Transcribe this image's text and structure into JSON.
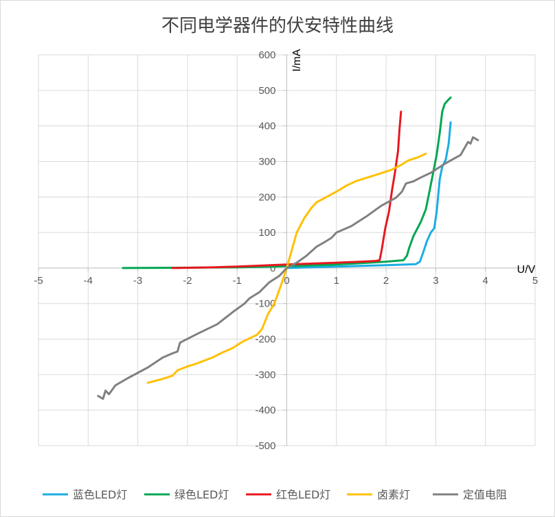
{
  "chart_data": {
    "type": "line",
    "title": "不同电学器件的伏安特性曲线",
    "xlabel": "U/V",
    "ylabel": "I/mA",
    "xlim": [
      -5,
      5
    ],
    "ylim": [
      -500,
      600
    ],
    "x_ticks": [
      -5,
      -4,
      -3,
      -2,
      -1,
      0,
      1,
      2,
      3,
      4,
      5
    ],
    "y_ticks": [
      600,
      500,
      400,
      300,
      200,
      100,
      0,
      -100,
      -200,
      -300,
      -400,
      -500
    ],
    "grid": true,
    "legend_position": "bottom",
    "series": [
      {
        "name": "蓝色LED灯",
        "color": "#1AADE3",
        "points": [
          [
            0,
            0
          ],
          [
            1,
            4
          ],
          [
            2,
            8
          ],
          [
            2.6,
            11
          ],
          [
            2.68,
            18
          ],
          [
            2.75,
            45
          ],
          [
            2.82,
            75
          ],
          [
            2.9,
            100
          ],
          [
            2.97,
            112
          ],
          [
            3.02,
            160
          ],
          [
            3.08,
            250
          ],
          [
            3.13,
            285
          ],
          [
            3.2,
            305
          ],
          [
            3.26,
            350
          ],
          [
            3.3,
            410
          ]
        ]
      },
      {
        "name": "绿色LED灯",
        "color": "#00A651",
        "points": [
          [
            -3.3,
            0
          ],
          [
            -2,
            1
          ],
          [
            -1,
            2
          ],
          [
            0,
            5
          ],
          [
            1,
            10
          ],
          [
            1.5,
            14
          ],
          [
            2,
            18
          ],
          [
            2.35,
            22
          ],
          [
            2.42,
            35
          ],
          [
            2.46,
            55
          ],
          [
            2.55,
            90
          ],
          [
            2.7,
            130
          ],
          [
            2.8,
            165
          ],
          [
            2.88,
            220
          ],
          [
            2.95,
            270
          ],
          [
            3.02,
            320
          ],
          [
            3.08,
            380
          ],
          [
            3.13,
            440
          ],
          [
            3.18,
            462
          ],
          [
            3.25,
            473
          ],
          [
            3.3,
            480
          ]
        ]
      },
      {
        "name": "红色LED灯",
        "color": "#E8171F",
        "points": [
          [
            -2.3,
            0
          ],
          [
            -1.5,
            2
          ],
          [
            -1,
            4
          ],
          [
            0,
            10
          ],
          [
            1,
            15
          ],
          [
            1.5,
            18
          ],
          [
            1.8,
            20
          ],
          [
            1.87,
            22
          ],
          [
            1.91,
            50
          ],
          [
            1.98,
            110
          ],
          [
            2.06,
            160
          ],
          [
            2.12,
            220
          ],
          [
            2.18,
            270
          ],
          [
            2.24,
            330
          ],
          [
            2.27,
            390
          ],
          [
            2.3,
            440
          ]
        ]
      },
      {
        "name": "卤素灯",
        "color": "#FFC000",
        "points": [
          [
            -2.8,
            -323
          ],
          [
            -2.5,
            -312
          ],
          [
            -2.3,
            -303
          ],
          [
            -2.2,
            -288
          ],
          [
            -2.0,
            -277
          ],
          [
            -1.8,
            -268
          ],
          [
            -1.5,
            -252
          ],
          [
            -1.3,
            -238
          ],
          [
            -1.1,
            -226
          ],
          [
            -0.9,
            -208
          ],
          [
            -0.6,
            -188
          ],
          [
            -0.5,
            -172
          ],
          [
            -0.38,
            -130
          ],
          [
            -0.25,
            -100
          ],
          [
            -0.12,
            -50
          ],
          [
            0,
            0
          ],
          [
            0.1,
            50
          ],
          [
            0.2,
            100
          ],
          [
            0.35,
            140
          ],
          [
            0.5,
            170
          ],
          [
            0.6,
            185
          ],
          [
            0.8,
            200
          ],
          [
            1.0,
            215
          ],
          [
            1.2,
            232
          ],
          [
            1.4,
            245
          ],
          [
            1.7,
            258
          ],
          [
            1.9,
            267
          ],
          [
            2.1,
            276
          ],
          [
            2.3,
            290
          ],
          [
            2.45,
            303
          ],
          [
            2.65,
            312
          ],
          [
            2.8,
            322
          ]
        ]
      },
      {
        "name": "定值电阻",
        "color": "#808080",
        "points": [
          [
            -3.8,
            -360
          ],
          [
            -3.7,
            -368
          ],
          [
            -3.65,
            -345
          ],
          [
            -3.58,
            -355
          ],
          [
            -3.45,
            -330
          ],
          [
            -3.2,
            -310
          ],
          [
            -2.8,
            -280
          ],
          [
            -2.5,
            -252
          ],
          [
            -2.3,
            -240
          ],
          [
            -2.2,
            -235
          ],
          [
            -2.15,
            -210
          ],
          [
            -1.8,
            -185
          ],
          [
            -1.4,
            -158
          ],
          [
            -1.05,
            -120
          ],
          [
            -0.85,
            -100
          ],
          [
            -0.75,
            -85
          ],
          [
            -0.55,
            -68
          ],
          [
            -0.35,
            -40
          ],
          [
            -0.15,
            -22
          ],
          [
            0,
            0
          ],
          [
            0.2,
            15
          ],
          [
            0.4,
            35
          ],
          [
            0.6,
            60
          ],
          [
            0.75,
            72
          ],
          [
            0.9,
            85
          ],
          [
            1.0,
            100
          ],
          [
            1.3,
            118
          ],
          [
            1.6,
            145
          ],
          [
            1.9,
            175
          ],
          [
            2.2,
            198
          ],
          [
            2.32,
            215
          ],
          [
            2.4,
            238
          ],
          [
            2.55,
            244
          ],
          [
            2.7,
            255
          ],
          [
            2.9,
            268
          ],
          [
            3.2,
            295
          ],
          [
            3.5,
            318
          ],
          [
            3.65,
            355
          ],
          [
            3.7,
            350
          ],
          [
            3.75,
            368
          ],
          [
            3.85,
            360
          ]
        ]
      }
    ]
  }
}
